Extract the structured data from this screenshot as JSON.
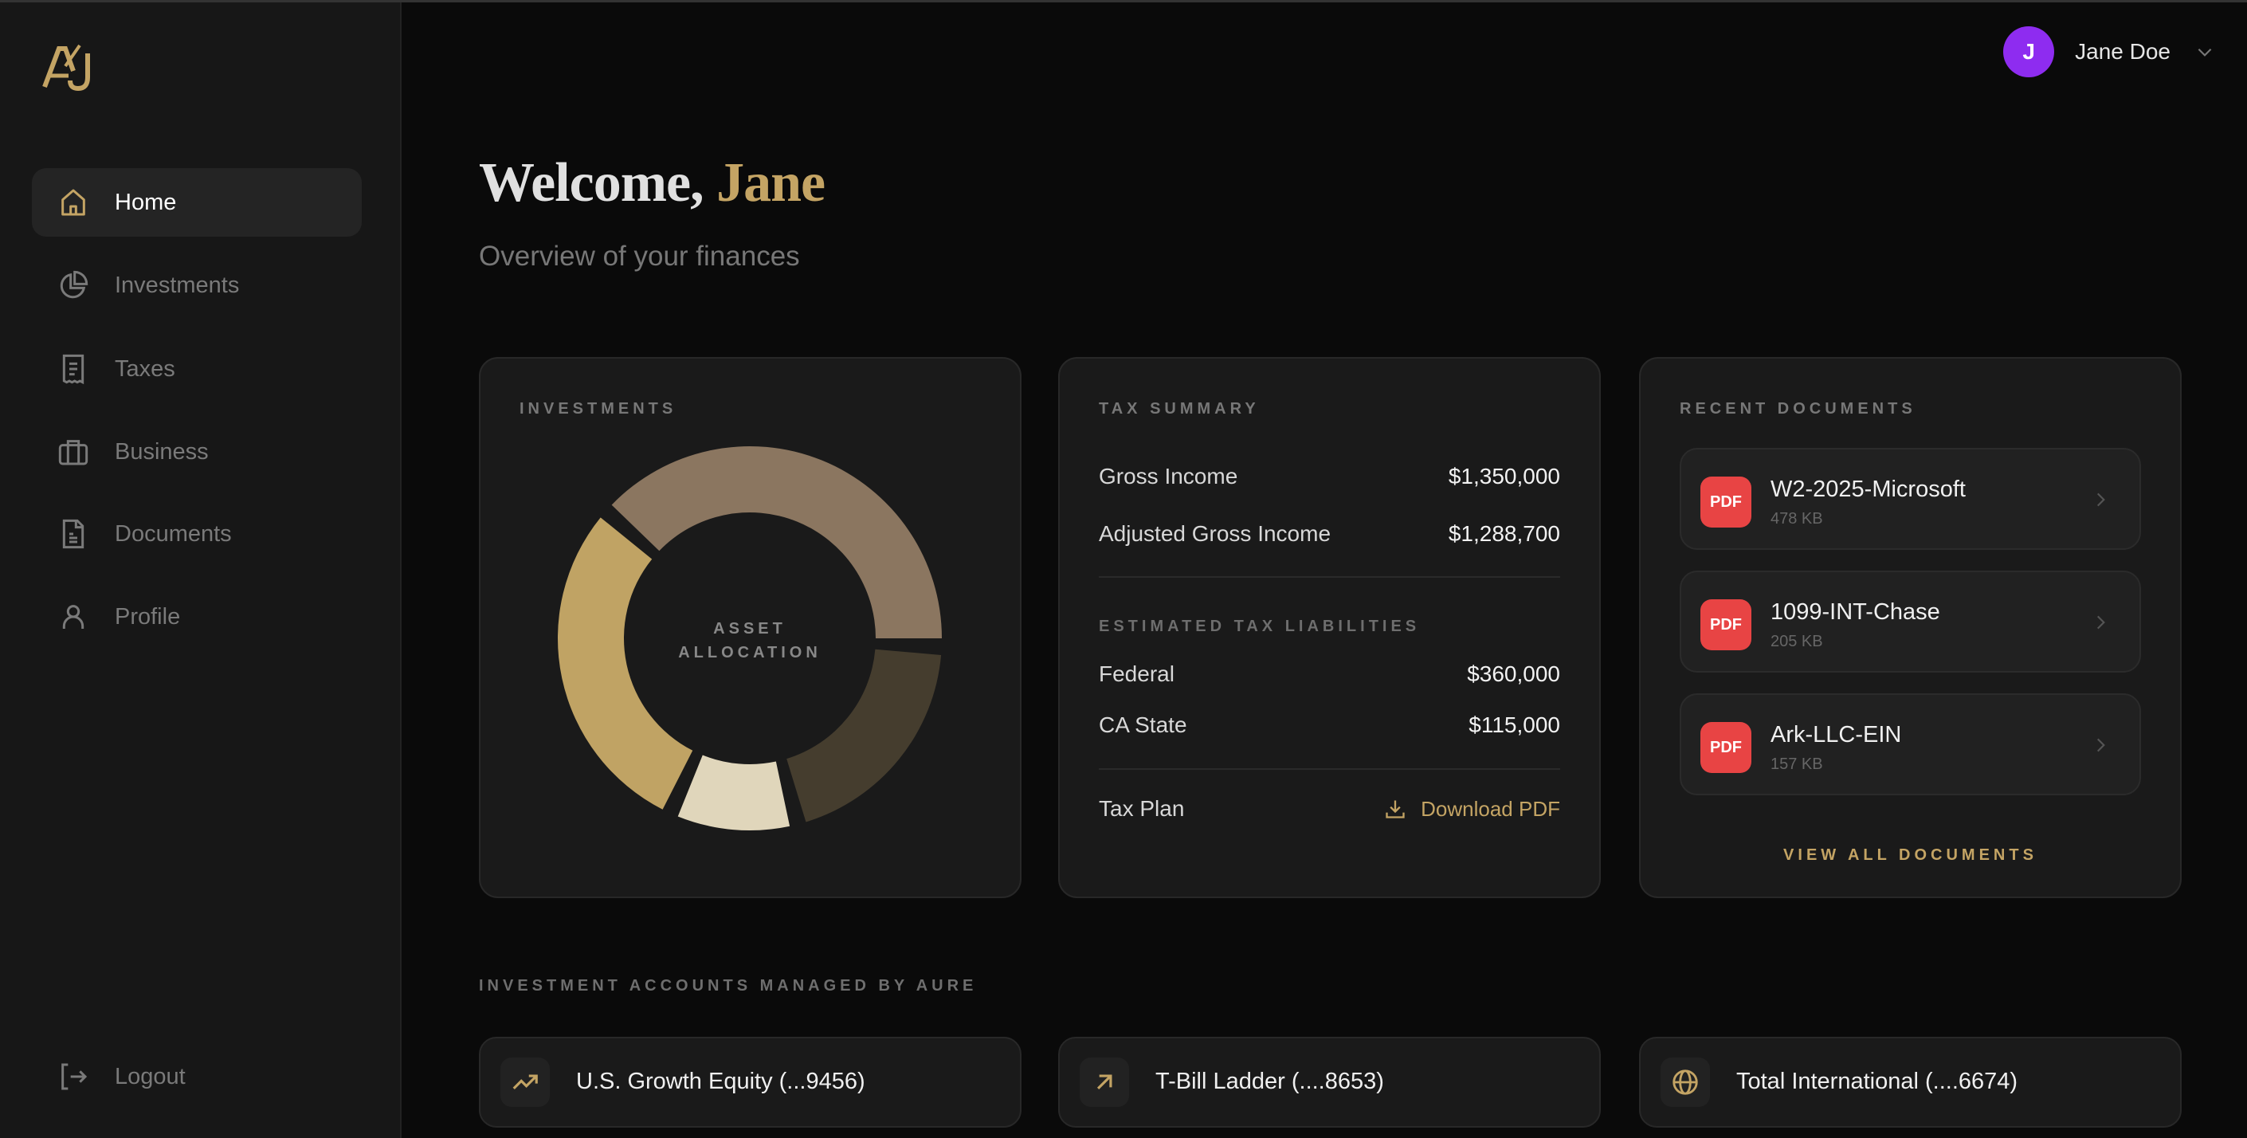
{
  "brand": {
    "logo_text": "AU",
    "accent": "#c4a464"
  },
  "sidebar": {
    "items": [
      {
        "label": "Home",
        "icon": "home-icon",
        "active": true
      },
      {
        "label": "Investments",
        "icon": "pie-chart-icon"
      },
      {
        "label": "Taxes",
        "icon": "receipt-icon"
      },
      {
        "label": "Business",
        "icon": "briefcase-icon"
      },
      {
        "label": "Documents",
        "icon": "document-icon"
      },
      {
        "label": "Profile",
        "icon": "user-icon"
      }
    ],
    "logout": "Logout"
  },
  "user": {
    "initial": "J",
    "name": "Jane Doe",
    "avatar_color": "#8e2cf0"
  },
  "header": {
    "greeting": "Welcome,",
    "first_name": "Jane",
    "subtitle": "Overview of your finances"
  },
  "investments": {
    "title": "INVESTMENTS",
    "center_line1": "ASSET",
    "center_line2": "ALLOCATION"
  },
  "chart_data": {
    "type": "pie",
    "donut": true,
    "values": [
      40,
      20,
      10,
      30
    ],
    "colors": [
      "#8b7660",
      "#453d2e",
      "#e0d6bb",
      "#c0a364"
    ]
  },
  "tax": {
    "title": "TAX SUMMARY",
    "rows": [
      {
        "label": "Gross Income",
        "value": "$1,350,000"
      },
      {
        "label": "Adjusted Gross Income",
        "value": "$1,288,700"
      }
    ],
    "liabilities_title": "ESTIMATED TAX LIABILITIES",
    "liabilities": [
      {
        "label": "Federal",
        "value": "$360,000"
      },
      {
        "label": "CA State",
        "value": "$115,000"
      }
    ],
    "plan_label": "Tax Plan",
    "download_label": "Download PDF"
  },
  "documents": {
    "title": "RECENT DOCUMENTS",
    "items": [
      {
        "type": "PDF",
        "name": "W2-2025-Microsoft",
        "size": "478 KB"
      },
      {
        "type": "PDF",
        "name": "1099-INT-Chase",
        "size": "205 KB"
      },
      {
        "type": "PDF",
        "name": "Ark-LLC-EIN",
        "size": "157 KB"
      }
    ],
    "view_all": "VIEW ALL DOCUMENTS"
  },
  "accounts": {
    "title": "INVESTMENT ACCOUNTS MANAGED BY AURE",
    "items": [
      {
        "name": "U.S. Growth Equity (...9456)",
        "icon": "trending-up-icon"
      },
      {
        "name": "T-Bill Ladder (....8653)",
        "icon": "arrow-up-right-icon"
      },
      {
        "name": "Total International (....6674)",
        "icon": "globe-icon"
      }
    ]
  }
}
